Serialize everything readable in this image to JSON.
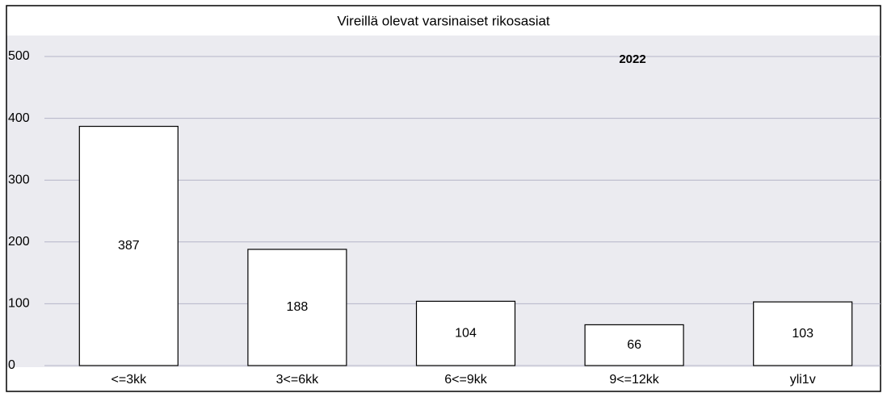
{
  "chart_data": {
    "type": "bar",
    "title": "Vireillä olevat varsinaiset rikosasiat",
    "annotation": "2022",
    "categories": [
      "<=3kk",
      "3<=6kk",
      "6<=9kk",
      "9<=12kk",
      "yli1v"
    ],
    "values": [
      387,
      188,
      104,
      66,
      103
    ],
    "color": "#ffffff",
    "ylim": [
      0,
      500
    ],
    "yticks": [
      0,
      100,
      200,
      300,
      400,
      500
    ],
    "grid": true
  }
}
